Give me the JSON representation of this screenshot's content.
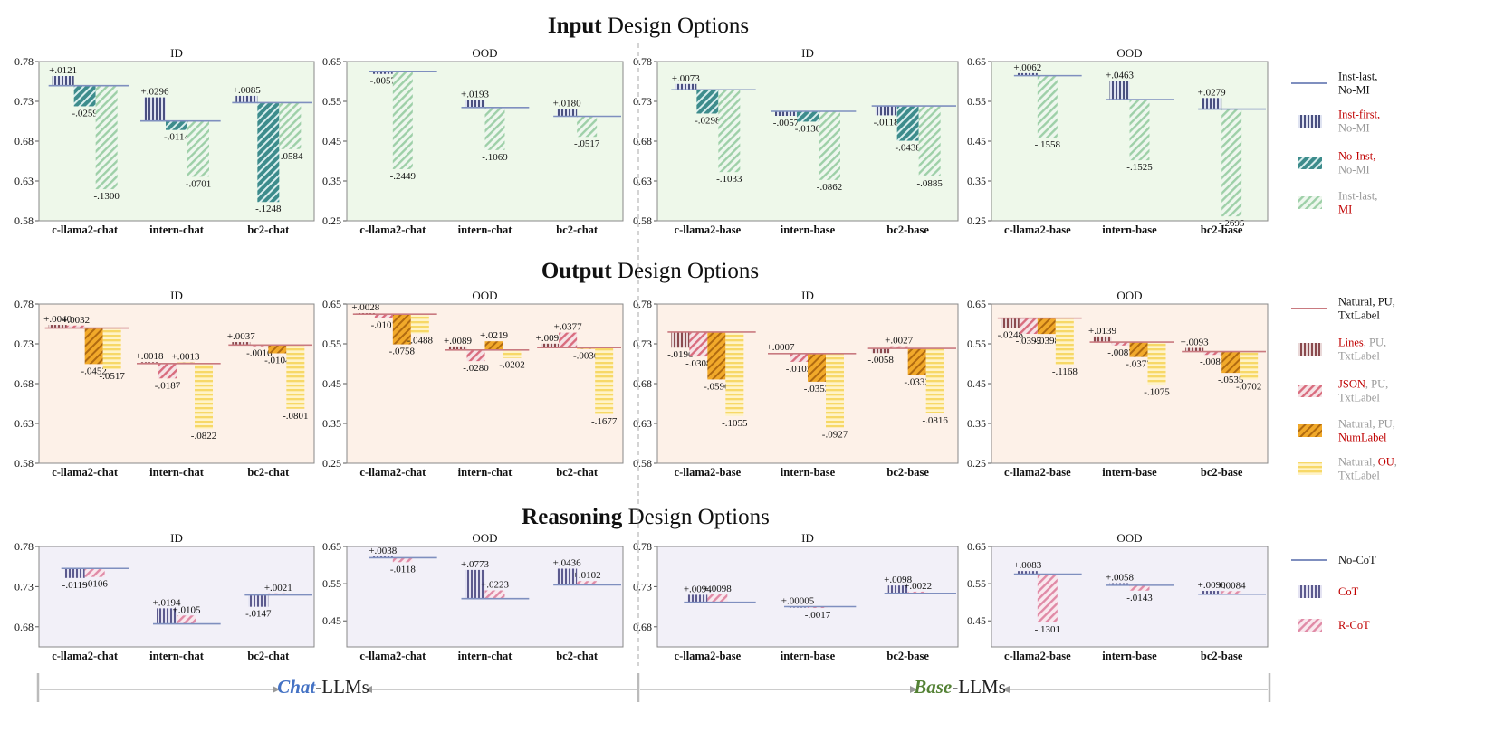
{
  "colors": {
    "bg_input": "#eef8ea",
    "bg_output": "#fdf1e8",
    "bg_reason": "#f2f0f8",
    "baseline_input": "#7f8fbf",
    "baseline_output": "#c97a80",
    "baseline_reason": "#7f8fbf",
    "red_text": "#c00000",
    "gray_text": "#999999",
    "chat_blue": "#4472c4",
    "base_green": "#548235",
    "arrow": "#999999"
  },
  "sections": [
    {
      "title_bold": "Input",
      "title_rest": " Design Options",
      "bg": "bg_input",
      "baseline_color": "baseline_input",
      "legend": [
        {
          "kind": "line",
          "parts": [
            [
              "Inst-last,",
              "k"
            ],
            [
              "No-MI",
              "k"
            ]
          ]
        },
        {
          "kind": "bar",
          "style": "s_navy",
          "parts": [
            [
              "Inst-first,",
              "r"
            ],
            [
              "No-MI",
              "g"
            ]
          ]
        },
        {
          "kind": "bar",
          "style": "s_teal",
          "parts": [
            [
              "No-Inst,",
              "r"
            ],
            [
              "No-MI",
              "g"
            ]
          ]
        },
        {
          "kind": "bar",
          "style": "s_green",
          "parts": [
            [
              "Inst-last,",
              "g"
            ],
            [
              "MI",
              "r"
            ]
          ]
        }
      ]
    },
    {
      "title_bold": "Output",
      "title_rest": " Design Options",
      "bg": "bg_output",
      "baseline_color": "baseline_output",
      "legend": [
        {
          "kind": "line",
          "parts": [
            [
              "Natural, PU,",
              "k"
            ],
            [
              "TxtLabel",
              "k"
            ]
          ]
        },
        {
          "kind": "bar",
          "style": "s_brown",
          "parts": [
            [
              "Lines",
              "r"
            ],
            [
              ", PU,",
              "g"
            ],
            [
              "TxtLabel",
              "g"
            ]
          ]
        },
        {
          "kind": "bar",
          "style": "s_pink",
          "parts": [
            [
              "JSON",
              "r"
            ],
            [
              ", PU,",
              "g"
            ],
            [
              "TxtLabel",
              "g"
            ]
          ]
        },
        {
          "kind": "bar",
          "style": "s_orange",
          "parts": [
            [
              "Natural, PU,",
              "g"
            ],
            [
              "NumLabel",
              "r"
            ]
          ]
        },
        {
          "kind": "bar",
          "style": "s_yellow",
          "parts": [
            [
              "Natural, ",
              "g"
            ],
            [
              "OU",
              "r"
            ],
            [
              ",",
              "g"
            ],
            [
              "TxtLabel",
              "g"
            ]
          ]
        }
      ]
    },
    {
      "title_bold": "Reasoning",
      "title_rest": " Design Options",
      "bg": "bg_reason",
      "baseline_color": "baseline_reason",
      "legend": [
        {
          "kind": "line",
          "parts": [
            [
              "No-CoT",
              "k"
            ]
          ]
        },
        {
          "kind": "bar",
          "style": "s_navy2",
          "parts": [
            [
              "CoT",
              "r"
            ]
          ]
        },
        {
          "kind": "bar",
          "style": "s_pink2",
          "parts": [
            [
              "R-CoT",
              "r"
            ]
          ]
        }
      ]
    }
  ],
  "footer": {
    "chat_word": "Chat",
    "chat_rest": "-LLMs",
    "base_word": "Base",
    "base_rest": "-LLMs"
  },
  "chart_data": [
    {
      "type": "bar",
      "section": 0,
      "title": "ID",
      "ylim": [
        0.58,
        0.78
      ],
      "yticks": [
        "0.58",
        "0.63",
        "0.68",
        "0.73",
        "0.78"
      ],
      "categories": [
        "c-llama2-chat",
        "intern-chat",
        "bc2-chat"
      ],
      "baselines": [
        0.7497,
        0.7054,
        0.7284
      ],
      "series": [
        {
          "name": "Inst-first, No-MI",
          "style": "s_navy",
          "values": [
            0.0121,
            0.0296,
            0.0085
          ],
          "labels": [
            "+.0121",
            "+.0296",
            "+.0085"
          ]
        },
        {
          "name": "No-Inst, No-MI",
          "style": "s_teal",
          "values": [
            -0.0259,
            -0.0114,
            -0.1248
          ],
          "labels": [
            "-.0259",
            "-.0114",
            "-.1248"
          ]
        },
        {
          "name": "Inst-last, MI",
          "style": "s_green",
          "values": [
            -0.13,
            -0.0701,
            -0.0584
          ],
          "labels": [
            "-.1300",
            "-.0701",
            "-.0584"
          ]
        }
      ]
    },
    {
      "type": "bar",
      "section": 0,
      "title": "OOD",
      "ylim": [
        0.25,
        0.65
      ],
      "yticks": [
        "0.25",
        "0.35",
        "0.45",
        "0.55",
        "0.65"
      ],
      "categories": [
        "c-llama2-chat",
        "intern-chat",
        "bc2-chat"
      ],
      "baselines": [
        0.6245,
        0.5345,
        0.5125
      ],
      "series": [
        {
          "name": "Inst-first, No-MI",
          "style": "s_navy",
          "values": [
            -0.0057,
            0.0193,
            0.018
          ],
          "labels": [
            "-.0057",
            "+.0193",
            "+.0180"
          ]
        },
        {
          "name": "Inst-last, MI",
          "style": "s_green",
          "values": [
            -0.2449,
            -0.1069,
            -0.0517
          ],
          "labels": [
            "-.2449",
            "-.1069",
            "-.0517"
          ]
        }
      ]
    },
    {
      "type": "bar",
      "section": 0,
      "title": "ID",
      "ylim": [
        0.58,
        0.78
      ],
      "yticks": [
        "0.58",
        "0.63",
        "0.68",
        "0.73",
        "0.78"
      ],
      "categories": [
        "c-llama2-base",
        "intern-base",
        "bc2-base"
      ],
      "baselines": [
        0.7445,
        0.7175,
        0.7243
      ],
      "series": [
        {
          "name": "Inst-first, No-MI",
          "style": "s_navy",
          "values": [
            0.0073,
            -0.0057,
            -0.0118
          ],
          "labels": [
            "+.0073",
            "-.0057",
            "-.0118"
          ]
        },
        {
          "name": "No-Inst, No-MI",
          "style": "s_teal",
          "values": [
            -0.0298,
            -0.013,
            -0.0438
          ],
          "labels": [
            "-.0298",
            "-.0130",
            "-.0438"
          ]
        },
        {
          "name": "Inst-last, MI",
          "style": "s_green",
          "values": [
            -0.1033,
            -0.0862,
            -0.0885
          ],
          "labels": [
            "-.1033",
            "-.0862",
            "-.0885"
          ]
        }
      ]
    },
    {
      "type": "bar",
      "section": 0,
      "title": "OOD",
      "ylim": [
        0.25,
        0.65
      ],
      "yticks": [
        "0.25",
        "0.35",
        "0.45",
        "0.55",
        "0.65"
      ],
      "categories": [
        "c-llama2-base",
        "intern-base",
        "bc2-base"
      ],
      "baselines": [
        0.6145,
        0.5545,
        0.5305
      ],
      "series": [
        {
          "name": "Inst-first, No-MI",
          "style": "s_navy",
          "values": [
            0.0062,
            0.0463,
            0.0279
          ],
          "labels": [
            "+.0062",
            "+.0463",
            "+.0279"
          ]
        },
        {
          "name": "Inst-last, MI",
          "style": "s_green",
          "values": [
            -0.1558,
            -0.1525,
            -0.2695
          ],
          "labels": [
            "-.1558",
            "-.1525",
            "-.2695"
          ]
        }
      ]
    },
    {
      "type": "bar",
      "section": 1,
      "title": "ID",
      "ylim": [
        0.58,
        0.78
      ],
      "yticks": [
        "0.58",
        "0.63",
        "0.68",
        "0.73",
        "0.78"
      ],
      "categories": [
        "c-llama2-chat",
        "intern-chat",
        "bc2-chat"
      ],
      "baselines": [
        0.7498,
        0.7052,
        0.7285
      ],
      "series": [
        {
          "name": "Lines, PU, TxtLabel",
          "style": "s_brown",
          "values": [
            0.004,
            0.0018,
            0.0037
          ],
          "labels": [
            "+.0040",
            "+.0018",
            "+.0037"
          ]
        },
        {
          "name": "JSON, PU, TxtLabel",
          "style": "s_pink",
          "values": [
            0.0032,
            -0.0187,
            -0.0016
          ],
          "labels": [
            "+.0032",
            "-.0187",
            "-.0016"
          ]
        },
        {
          "name": "Natural, PU, NumLabel",
          "style": "s_orange",
          "values": [
            -0.0452,
            0.0013,
            -0.0104
          ],
          "labels": [
            "-.0452",
            "+.0013",
            "-.0104"
          ]
        },
        {
          "name": "Natural, OU, TxtLabel",
          "style": "s_yellow",
          "values": [
            -0.0517,
            -0.0822,
            -0.0801
          ],
          "labels": [
            "-.0517",
            "-.0822",
            "-.0801"
          ]
        }
      ]
    },
    {
      "type": "bar",
      "section": 1,
      "title": "OOD",
      "ylim": [
        0.25,
        0.65
      ],
      "yticks": [
        "0.25",
        "0.35",
        "0.45",
        "0.55",
        "0.65"
      ],
      "categories": [
        "c-llama2-chat",
        "intern-chat",
        "bc2-chat"
      ],
      "baselines": [
        0.6245,
        0.5345,
        0.5405
      ],
      "series": [
        {
          "name": "Lines, PU, TxtLabel",
          "style": "s_brown",
          "values": [
            0.0028,
            0.0089,
            0.0099
          ],
          "labels": [
            "+.0028",
            "+.0089",
            "+.0099"
          ]
        },
        {
          "name": "JSON, PU, TxtLabel",
          "style": "s_pink",
          "values": [
            -0.0101,
            -0.028,
            0.0377
          ],
          "labels": [
            "-.0101",
            "-.0280",
            "+.0377"
          ]
        },
        {
          "name": "Natural, PU, NumLabel",
          "style": "s_orange",
          "values": [
            -0.0758,
            0.0219,
            -0.003
          ],
          "labels": [
            "-.0758",
            "+.0219",
            "-.0030"
          ]
        },
        {
          "name": "Natural, OU, TxtLabel",
          "style": "s_yellow",
          "values": [
            -0.0488,
            -0.0202,
            -0.1677
          ],
          "labels": [
            "-.0488",
            "-.0202",
            "-.1677"
          ]
        }
      ]
    },
    {
      "type": "bar",
      "section": 1,
      "title": "ID",
      "ylim": [
        0.58,
        0.78
      ],
      "yticks": [
        "0.58",
        "0.63",
        "0.68",
        "0.73",
        "0.78"
      ],
      "categories": [
        "c-llama2-base",
        "intern-base",
        "bc2-base"
      ],
      "baselines": [
        0.7448,
        0.7177,
        0.7242
      ],
      "series": [
        {
          "name": "Lines, PU, TxtLabel",
          "style": "s_brown",
          "values": [
            -0.0196,
            0.0007,
            -0.0058
          ],
          "labels": [
            "-.0196",
            "+.0007",
            "-.0058"
          ]
        },
        {
          "name": "JSON, PU, TxtLabel",
          "style": "s_pink",
          "values": [
            -0.0308,
            -0.0103,
            0.0027
          ],
          "labels": [
            "-.0308",
            "-.0103",
            "+.0027"
          ]
        },
        {
          "name": "Natural, PU, NumLabel",
          "style": "s_orange",
          "values": [
            -0.0596,
            -0.0353,
            -0.0333
          ],
          "labels": [
            "-.0596",
            "-.0353",
            "-.0333"
          ]
        },
        {
          "name": "Natural, OU, TxtLabel",
          "style": "s_yellow",
          "values": [
            -0.1055,
            -0.0927,
            -0.0816
          ],
          "labels": [
            "-.1055",
            "-.0927",
            "-.0816"
          ]
        }
      ]
    },
    {
      "type": "bar",
      "section": 1,
      "title": "OOD",
      "ylim": [
        0.25,
        0.65
      ],
      "yticks": [
        "0.25",
        "0.35",
        "0.45",
        "0.55",
        "0.65"
      ],
      "categories": [
        "c-llama2-base",
        "intern-base",
        "bc2-base"
      ],
      "baselines": [
        0.6145,
        0.5545,
        0.5305
      ],
      "series": [
        {
          "name": "Lines, PU, TxtLabel",
          "style": "s_brown",
          "values": [
            -0.0248,
            0.0139,
            0.0093
          ],
          "labels": [
            "-.0248",
            "+.0139",
            "+.0093"
          ]
        },
        {
          "name": "JSON, PU, TxtLabel",
          "style": "s_pink",
          "values": [
            -0.0395,
            -0.0087,
            -0.0083
          ],
          "labels": [
            "-.0395",
            "-.0087",
            "-.0083"
          ]
        },
        {
          "name": "Natural, PU, NumLabel",
          "style": "s_orange",
          "values": [
            -0.0398,
            -0.0377,
            -0.0535
          ],
          "labels": [
            "-.0398",
            "-.0377",
            "-.0535"
          ]
        },
        {
          "name": "Natural, OU, TxtLabel",
          "style": "s_yellow",
          "values": [
            -0.1168,
            -0.1075,
            -0.0702
          ],
          "labels": [
            "-.1168",
            "-.1075",
            "-.0702"
          ]
        }
      ]
    },
    {
      "type": "bar",
      "section": 2,
      "title": "ID",
      "ylim": [
        0.655,
        0.78
      ],
      "yticks": [
        "0.68",
        "0.73",
        "0.78"
      ],
      "categories": [
        "c-llama2-chat",
        "intern-chat",
        "bc2-chat"
      ],
      "baselines": [
        0.7527,
        0.6836,
        0.7196
      ],
      "series": [
        {
          "name": "CoT",
          "style": "s_navy2",
          "values": [
            -0.0119,
            0.0194,
            -0.0147
          ],
          "labels": [
            "-.0119",
            "+.0194",
            "-.0147"
          ]
        },
        {
          "name": "R-CoT",
          "style": "s_pink2",
          "values": [
            -0.0106,
            0.0105,
            0.0021
          ],
          "labels": [
            "-.0106",
            "+.0105",
            "+.0021"
          ]
        }
      ]
    },
    {
      "type": "bar",
      "section": 2,
      "title": "OOD",
      "ylim": [
        0.38,
        0.65
      ],
      "yticks": [
        "0.45",
        "0.55",
        "0.65"
      ],
      "categories": [
        "c-llama2-chat",
        "intern-chat",
        "bc2-chat"
      ],
      "baselines": [
        0.6197,
        0.5097,
        0.5468
      ],
      "series": [
        {
          "name": "CoT",
          "style": "s_navy2",
          "values": [
            0.0038,
            0.0773,
            0.0436
          ],
          "labels": [
            "+.0038",
            "+.0773",
            "+.0436"
          ]
        },
        {
          "name": "R-CoT",
          "style": "s_pink2",
          "values": [
            -0.0118,
            0.0223,
            0.0102
          ],
          "labels": [
            "-.0118",
            "+.0223",
            "+.0102"
          ]
        }
      ]
    },
    {
      "type": "bar",
      "section": 2,
      "title": "ID",
      "ylim": [
        0.655,
        0.78
      ],
      "yticks": [
        "0.68",
        "0.73",
        "0.78"
      ],
      "categories": [
        "c-llama2-base",
        "intern-base",
        "bc2-base"
      ],
      "baselines": [
        0.7105,
        0.7051,
        0.7216
      ],
      "series": [
        {
          "name": "CoT",
          "style": "s_navy2",
          "values": [
            0.0094,
            5e-05,
            0.0098
          ],
          "labels": [
            "+.0094",
            "+.00005",
            "+.0098"
          ]
        },
        {
          "name": "R-CoT",
          "style": "s_pink2",
          "values": [
            0.0098,
            -0.0017,
            0.0022
          ],
          "labels": [
            "+.0098",
            "-.0017",
            "+.0022"
          ]
        }
      ]
    },
    {
      "type": "bar",
      "section": 2,
      "title": "OOD",
      "ylim": [
        0.38,
        0.65
      ],
      "yticks": [
        "0.45",
        "0.55",
        "0.65"
      ],
      "categories": [
        "c-llama2-base",
        "intern-base",
        "bc2-base"
      ],
      "baselines": [
        0.5757,
        0.5457,
        0.5217
      ],
      "series": [
        {
          "name": "CoT",
          "style": "s_navy2",
          "values": [
            0.0083,
            0.0058,
            0.009
          ],
          "labels": [
            "+.0083",
            "+.0058",
            "+.0090"
          ]
        },
        {
          "name": "R-CoT",
          "style": "s_pink2",
          "values": [
            -0.1301,
            -0.0143,
            0.0084
          ],
          "labels": [
            "-.1301",
            "-.0143",
            "+.0084"
          ]
        }
      ]
    }
  ]
}
